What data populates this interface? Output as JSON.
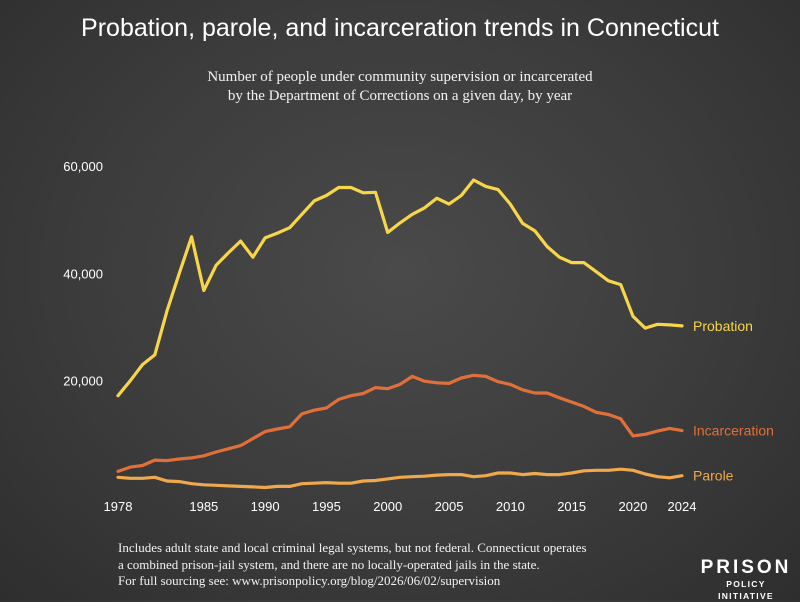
{
  "title": "Probation, parole, and incarceration trends in Connecticut",
  "subtitle_lines": [
    "Number of people under community supervision or incarcerated",
    "by the Department of Corrections on a given day, by year"
  ],
  "footnote_lines": [
    "Includes adult state and local criminal legal systems, but not federal. Connecticut operates",
    "a combined prison-jail system, and there are no locally-operated jails in the state.",
    "For full sourcing see: www.prisonpolicy.org/blog/2026/06/02/supervision"
  ],
  "logo": {
    "line1": "PRISON",
    "line2": "POLICY INITIATIVE"
  },
  "colors": {
    "probation": "#f7d64a",
    "incarceration": "#e0703a",
    "parole": "#f0a84c",
    "axis_text": "#ffffff",
    "gridline": "#5a5a5a"
  },
  "chart_data": {
    "type": "line",
    "title": "Probation, parole, and incarceration trends in Connecticut",
    "xlim": [
      1978,
      2024
    ],
    "ylim": [
      0,
      60000
    ],
    "x_ticks": [
      1978,
      1985,
      1990,
      1995,
      2000,
      2005,
      2010,
      2015,
      2020,
      2024
    ],
    "y_ticks": [
      20000,
      40000,
      60000
    ],
    "x_tick_labels": [
      "1978",
      "1985",
      "1990",
      "1995",
      "2000",
      "2005",
      "2010",
      "2015",
      "2020",
      "2024"
    ],
    "y_tick_labels": [
      "20,000",
      "40,000",
      "60,000"
    ],
    "grid": false,
    "legend": "inline labels at right end of each series",
    "x": [
      1978,
      1979,
      1980,
      1981,
      1982,
      1983,
      1984,
      1985,
      1986,
      1987,
      1988,
      1989,
      1990,
      1991,
      1992,
      1993,
      1994,
      1995,
      1996,
      1997,
      1998,
      1999,
      2000,
      2001,
      2002,
      2003,
      2004,
      2005,
      2006,
      2007,
      2008,
      2009,
      2010,
      2011,
      2012,
      2013,
      2014,
      2015,
      2016,
      2017,
      2018,
      2019,
      2020,
      2021,
      2022,
      2023,
      2024
    ],
    "series": [
      {
        "name": "Probation",
        "color": "#f7d64a",
        "values": [
          17200,
          20000,
          23000,
          24800,
          33000,
          40000,
          46800,
          36800,
          41500,
          43800,
          46000,
          43000,
          46600,
          47500,
          48500,
          51000,
          53500,
          54500,
          56000,
          56000,
          55000,
          55100,
          47600,
          49400,
          51000,
          52200,
          54000,
          52900,
          54500,
          57400,
          56200,
          55600,
          52900,
          49300,
          47900,
          45000,
          43000,
          42000,
          42000,
          40300,
          38600,
          37900,
          32000,
          29800,
          30500,
          30400,
          30200
        ]
      },
      {
        "name": "Incarceration",
        "color": "#e0703a",
        "values": [
          3100,
          3900,
          4200,
          5200,
          5100,
          5400,
          5600,
          6000,
          6700,
          7300,
          7900,
          9200,
          10500,
          11000,
          11400,
          13800,
          14500,
          14900,
          16500,
          17200,
          17600,
          18700,
          18500,
          19300,
          20800,
          19900,
          19600,
          19500,
          20500,
          21000,
          20800,
          19800,
          19300,
          18300,
          17700,
          17700,
          16800,
          16000,
          15200,
          14100,
          13700,
          12900,
          9700,
          10000,
          10600,
          11100,
          10700
        ]
      },
      {
        "name": "Parole",
        "color": "#f0a84c",
        "values": [
          2000,
          1800,
          1800,
          2000,
          1300,
          1200,
          800,
          600,
          500,
          400,
          300,
          200,
          100,
          300,
          300,
          800,
          900,
          1000,
          900,
          900,
          1300,
          1400,
          1700,
          2000,
          2100,
          2200,
          2400,
          2500,
          2500,
          2100,
          2300,
          2800,
          2800,
          2500,
          2700,
          2500,
          2500,
          2800,
          3200,
          3300,
          3300,
          3500,
          3300,
          2600,
          2100,
          1900,
          2300
        ]
      }
    ]
  }
}
